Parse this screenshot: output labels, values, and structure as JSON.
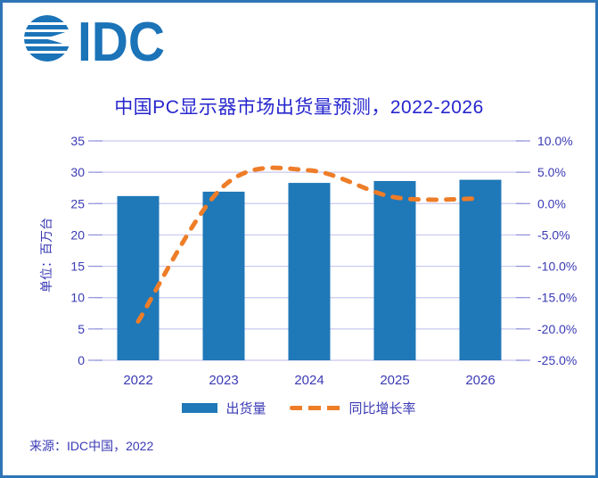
{
  "logo": {
    "text": "IDC"
  },
  "title": "中国PC显示器市场出货量预测，2022-2026",
  "legend": {
    "bars": "出货量",
    "line": "同比增长率"
  },
  "source": "来源：IDC中国，2022",
  "colors": {
    "bar": "#1F78B8",
    "line": "#EE7D28",
    "title": "#2626CE",
    "axis_text": "#3A3AB5",
    "grid": "#C8C8F0",
    "tick": "#9090DC",
    "border": "#2E75B6",
    "logo": "#1B73B8"
  },
  "chart_data": {
    "type": "bar",
    "title": "中国PC显示器市场出货量预测，2022-2026",
    "categories": [
      "2022",
      "2023",
      "2024",
      "2025",
      "2026"
    ],
    "series": [
      {
        "name": "出货量",
        "type": "bar",
        "axis": "left",
        "unit": "百万台",
        "values": [
          26.2,
          26.9,
          28.3,
          28.6,
          28.8
        ]
      },
      {
        "name": "同比增长率",
        "type": "line",
        "style": "dashed",
        "axis": "right",
        "unit": "%",
        "values": [
          -18.8,
          2.8,
          5.3,
          1.0,
          0.8
        ]
      }
    ],
    "left_axis": {
      "label": "单位：百万台",
      "min": 0,
      "max": 35,
      "step": 5,
      "ticks": [
        "35",
        "30",
        "25",
        "20",
        "15",
        "10",
        "5",
        "0"
      ]
    },
    "right_axis": {
      "min": -25,
      "max": 10,
      "step": 5,
      "ticks": [
        "10.0%",
        "5.0%",
        "0.0%",
        "-5.0%",
        "-10.0%",
        "-15.0%",
        "-20.0%",
        "-25.0%"
      ]
    },
    "grid": true,
    "legend_position": "bottom"
  }
}
